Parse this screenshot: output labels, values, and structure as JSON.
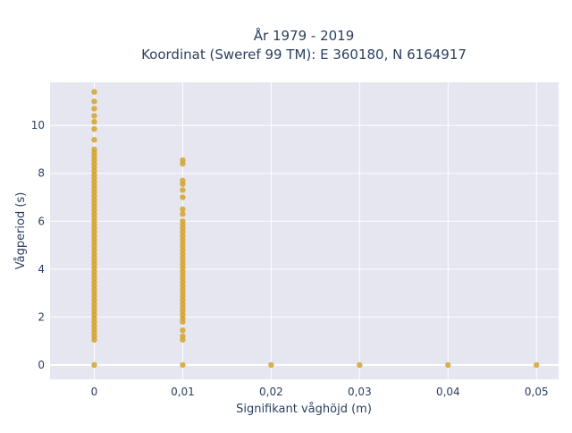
{
  "chart_data": {
    "type": "scatter",
    "title_lines": [
      "År 1979 - 2019",
      "Koordinat (Sweref 99 TM): E 360180, N 6164917"
    ],
    "xlabel": "Signifikant våghöjd (m)",
    "ylabel": "Vågperiod (s)",
    "xlim": [
      -0.005,
      0.0525
    ],
    "ylim": [
      -0.6,
      11.8
    ],
    "x_ticks": [
      {
        "value": 0,
        "label": "0"
      },
      {
        "value": 0.01,
        "label": "0,01"
      },
      {
        "value": 0.02,
        "label": "0,02"
      },
      {
        "value": 0.03,
        "label": "0,03"
      },
      {
        "value": 0.04,
        "label": "0,04"
      },
      {
        "value": 0.05,
        "label": "0,05"
      }
    ],
    "y_ticks": [
      {
        "value": 0,
        "label": "0"
      },
      {
        "value": 2,
        "label": "2"
      },
      {
        "value": 4,
        "label": "4"
      },
      {
        "value": 6,
        "label": "6"
      },
      {
        "value": 8,
        "label": "8"
      },
      {
        "value": 10,
        "label": "10"
      }
    ],
    "grid": true,
    "marker_color": "#d4a32b",
    "plot_bg": "#e5e6ef",
    "series": [
      {
        "points": [
          {
            "x": 0,
            "y": 0
          },
          {
            "x": 0,
            "y": 1.05
          },
          {
            "x": 0,
            "y": 1.2
          },
          {
            "x": 0,
            "y": 1.35
          },
          {
            "x": 0,
            "y": 1.5
          },
          {
            "x": 0,
            "y": 1.65
          },
          {
            "x": 0,
            "y": 1.8
          },
          {
            "x": 0,
            "y": 1.95
          },
          {
            "x": 0,
            "y": 2.1
          },
          {
            "x": 0,
            "y": 2.25
          },
          {
            "x": 0,
            "y": 2.4
          },
          {
            "x": 0,
            "y": 2.55
          },
          {
            "x": 0,
            "y": 2.7
          },
          {
            "x": 0,
            "y": 2.85
          },
          {
            "x": 0,
            "y": 3.0
          },
          {
            "x": 0,
            "y": 3.15
          },
          {
            "x": 0,
            "y": 3.3
          },
          {
            "x": 0,
            "y": 3.45
          },
          {
            "x": 0,
            "y": 3.6
          },
          {
            "x": 0,
            "y": 3.75
          },
          {
            "x": 0,
            "y": 3.9
          },
          {
            "x": 0,
            "y": 4.05
          },
          {
            "x": 0,
            "y": 4.2
          },
          {
            "x": 0,
            "y": 4.35
          },
          {
            "x": 0,
            "y": 4.5
          },
          {
            "x": 0,
            "y": 4.65
          },
          {
            "x": 0,
            "y": 4.8
          },
          {
            "x": 0,
            "y": 4.95
          },
          {
            "x": 0,
            "y": 5.1
          },
          {
            "x": 0,
            "y": 5.25
          },
          {
            "x": 0,
            "y": 5.4
          },
          {
            "x": 0,
            "y": 5.55
          },
          {
            "x": 0,
            "y": 5.7
          },
          {
            "x": 0,
            "y": 5.85
          },
          {
            "x": 0,
            "y": 6.0
          },
          {
            "x": 0,
            "y": 6.15
          },
          {
            "x": 0,
            "y": 6.3
          },
          {
            "x": 0,
            "y": 6.45
          },
          {
            "x": 0,
            "y": 6.6
          },
          {
            "x": 0,
            "y": 6.75
          },
          {
            "x": 0,
            "y": 6.9
          },
          {
            "x": 0,
            "y": 7.05
          },
          {
            "x": 0,
            "y": 7.2
          },
          {
            "x": 0,
            "y": 7.35
          },
          {
            "x": 0,
            "y": 7.5
          },
          {
            "x": 0,
            "y": 7.65
          },
          {
            "x": 0,
            "y": 7.8
          },
          {
            "x": 0,
            "y": 7.95
          },
          {
            "x": 0,
            "y": 8.1
          },
          {
            "x": 0,
            "y": 8.25
          },
          {
            "x": 0,
            "y": 8.4
          },
          {
            "x": 0,
            "y": 8.55
          },
          {
            "x": 0,
            "y": 8.7
          },
          {
            "x": 0,
            "y": 8.85
          },
          {
            "x": 0,
            "y": 9.0
          },
          {
            "x": 0,
            "y": 9.4
          },
          {
            "x": 0,
            "y": 9.85
          },
          {
            "x": 0,
            "y": 10.15
          },
          {
            "x": 0,
            "y": 10.4
          },
          {
            "x": 0,
            "y": 10.7
          },
          {
            "x": 0,
            "y": 11.0
          },
          {
            "x": 0,
            "y": 11.4
          },
          {
            "x": 0.01,
            "y": 0
          },
          {
            "x": 0.01,
            "y": 1.05
          },
          {
            "x": 0.01,
            "y": 1.2
          },
          {
            "x": 0.01,
            "y": 1.45
          },
          {
            "x": 0.01,
            "y": 1.8
          },
          {
            "x": 0.01,
            "y": 1.95
          },
          {
            "x": 0.01,
            "y": 2.1
          },
          {
            "x": 0.01,
            "y": 2.25
          },
          {
            "x": 0.01,
            "y": 2.4
          },
          {
            "x": 0.01,
            "y": 2.55
          },
          {
            "x": 0.01,
            "y": 2.7
          },
          {
            "x": 0.01,
            "y": 2.85
          },
          {
            "x": 0.01,
            "y": 3.0
          },
          {
            "x": 0.01,
            "y": 3.15
          },
          {
            "x": 0.01,
            "y": 3.3
          },
          {
            "x": 0.01,
            "y": 3.45
          },
          {
            "x": 0.01,
            "y": 3.6
          },
          {
            "x": 0.01,
            "y": 3.75
          },
          {
            "x": 0.01,
            "y": 3.9
          },
          {
            "x": 0.01,
            "y": 4.05
          },
          {
            "x": 0.01,
            "y": 4.2
          },
          {
            "x": 0.01,
            "y": 4.35
          },
          {
            "x": 0.01,
            "y": 4.5
          },
          {
            "x": 0.01,
            "y": 4.65
          },
          {
            "x": 0.01,
            "y": 4.8
          },
          {
            "x": 0.01,
            "y": 4.95
          },
          {
            "x": 0.01,
            "y": 5.1
          },
          {
            "x": 0.01,
            "y": 5.25
          },
          {
            "x": 0.01,
            "y": 5.4
          },
          {
            "x": 0.01,
            "y": 5.55
          },
          {
            "x": 0.01,
            "y": 5.7
          },
          {
            "x": 0.01,
            "y": 5.85
          },
          {
            "x": 0.01,
            "y": 6.0
          },
          {
            "x": 0.01,
            "y": 6.3
          },
          {
            "x": 0.01,
            "y": 6.5
          },
          {
            "x": 0.01,
            "y": 7.0
          },
          {
            "x": 0.01,
            "y": 7.3
          },
          {
            "x": 0.01,
            "y": 7.55
          },
          {
            "x": 0.01,
            "y": 7.7
          },
          {
            "x": 0.01,
            "y": 8.4
          },
          {
            "x": 0.01,
            "y": 8.55
          },
          {
            "x": 0.02,
            "y": 0
          },
          {
            "x": 0.03,
            "y": 0
          },
          {
            "x": 0.04,
            "y": 0
          },
          {
            "x": 0.05,
            "y": 0
          }
        ]
      }
    ]
  }
}
